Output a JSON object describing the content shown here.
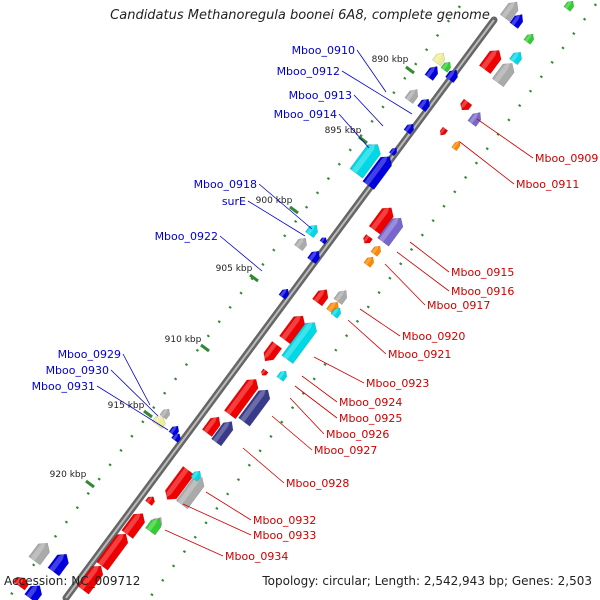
{
  "title": "Candidatus Methanoregula boonei 6A8, complete genome",
  "footer": {
    "accession": "Accession: NC_009712",
    "topology": "Topology: circular; Length: 2,542,943 bp; Genes: 2,503"
  },
  "colors": {
    "backbone": "#888888",
    "label_left": "#0000cc",
    "label_right": "#cc0000",
    "tick": "#338833",
    "gene_red": "#ee0000",
    "gene_blue": "#0000dd",
    "gene_cyan": "#00d8e6",
    "gene_gray": "#aaaaaa",
    "gene_navy": "#3a3a8a",
    "gene_purple": "#7766cc",
    "gene_orange": "#ff8800",
    "gene_green": "#33cc33",
    "gene_yellow": "#eeee99"
  },
  "kbp_ticks": [
    "890 kbp",
    "895 kbp",
    "900 kbp",
    "905 kbp",
    "910 kbp",
    "915 kbp",
    "920 kbp"
  ],
  "left_labels": [
    "Mboo_0910",
    "Mboo_0912",
    "Mboo_0913",
    "Mboo_0914",
    "Mboo_0918",
    "surE",
    "Mboo_0922",
    "Mboo_0929",
    "Mboo_0930",
    "Mboo_0931"
  ],
  "right_labels": [
    "Mboo_0909",
    "Mboo_0911",
    "Mboo_0915",
    "Mboo_0916",
    "Mboo_0917",
    "Mboo_0920",
    "Mboo_0921",
    "Mboo_0923",
    "Mboo_0924",
    "Mboo_0925",
    "Mboo_0926",
    "Mboo_0927",
    "Mboo_0928",
    "Mboo_0932",
    "Mboo_0933",
    "Mboo_0934"
  ]
}
